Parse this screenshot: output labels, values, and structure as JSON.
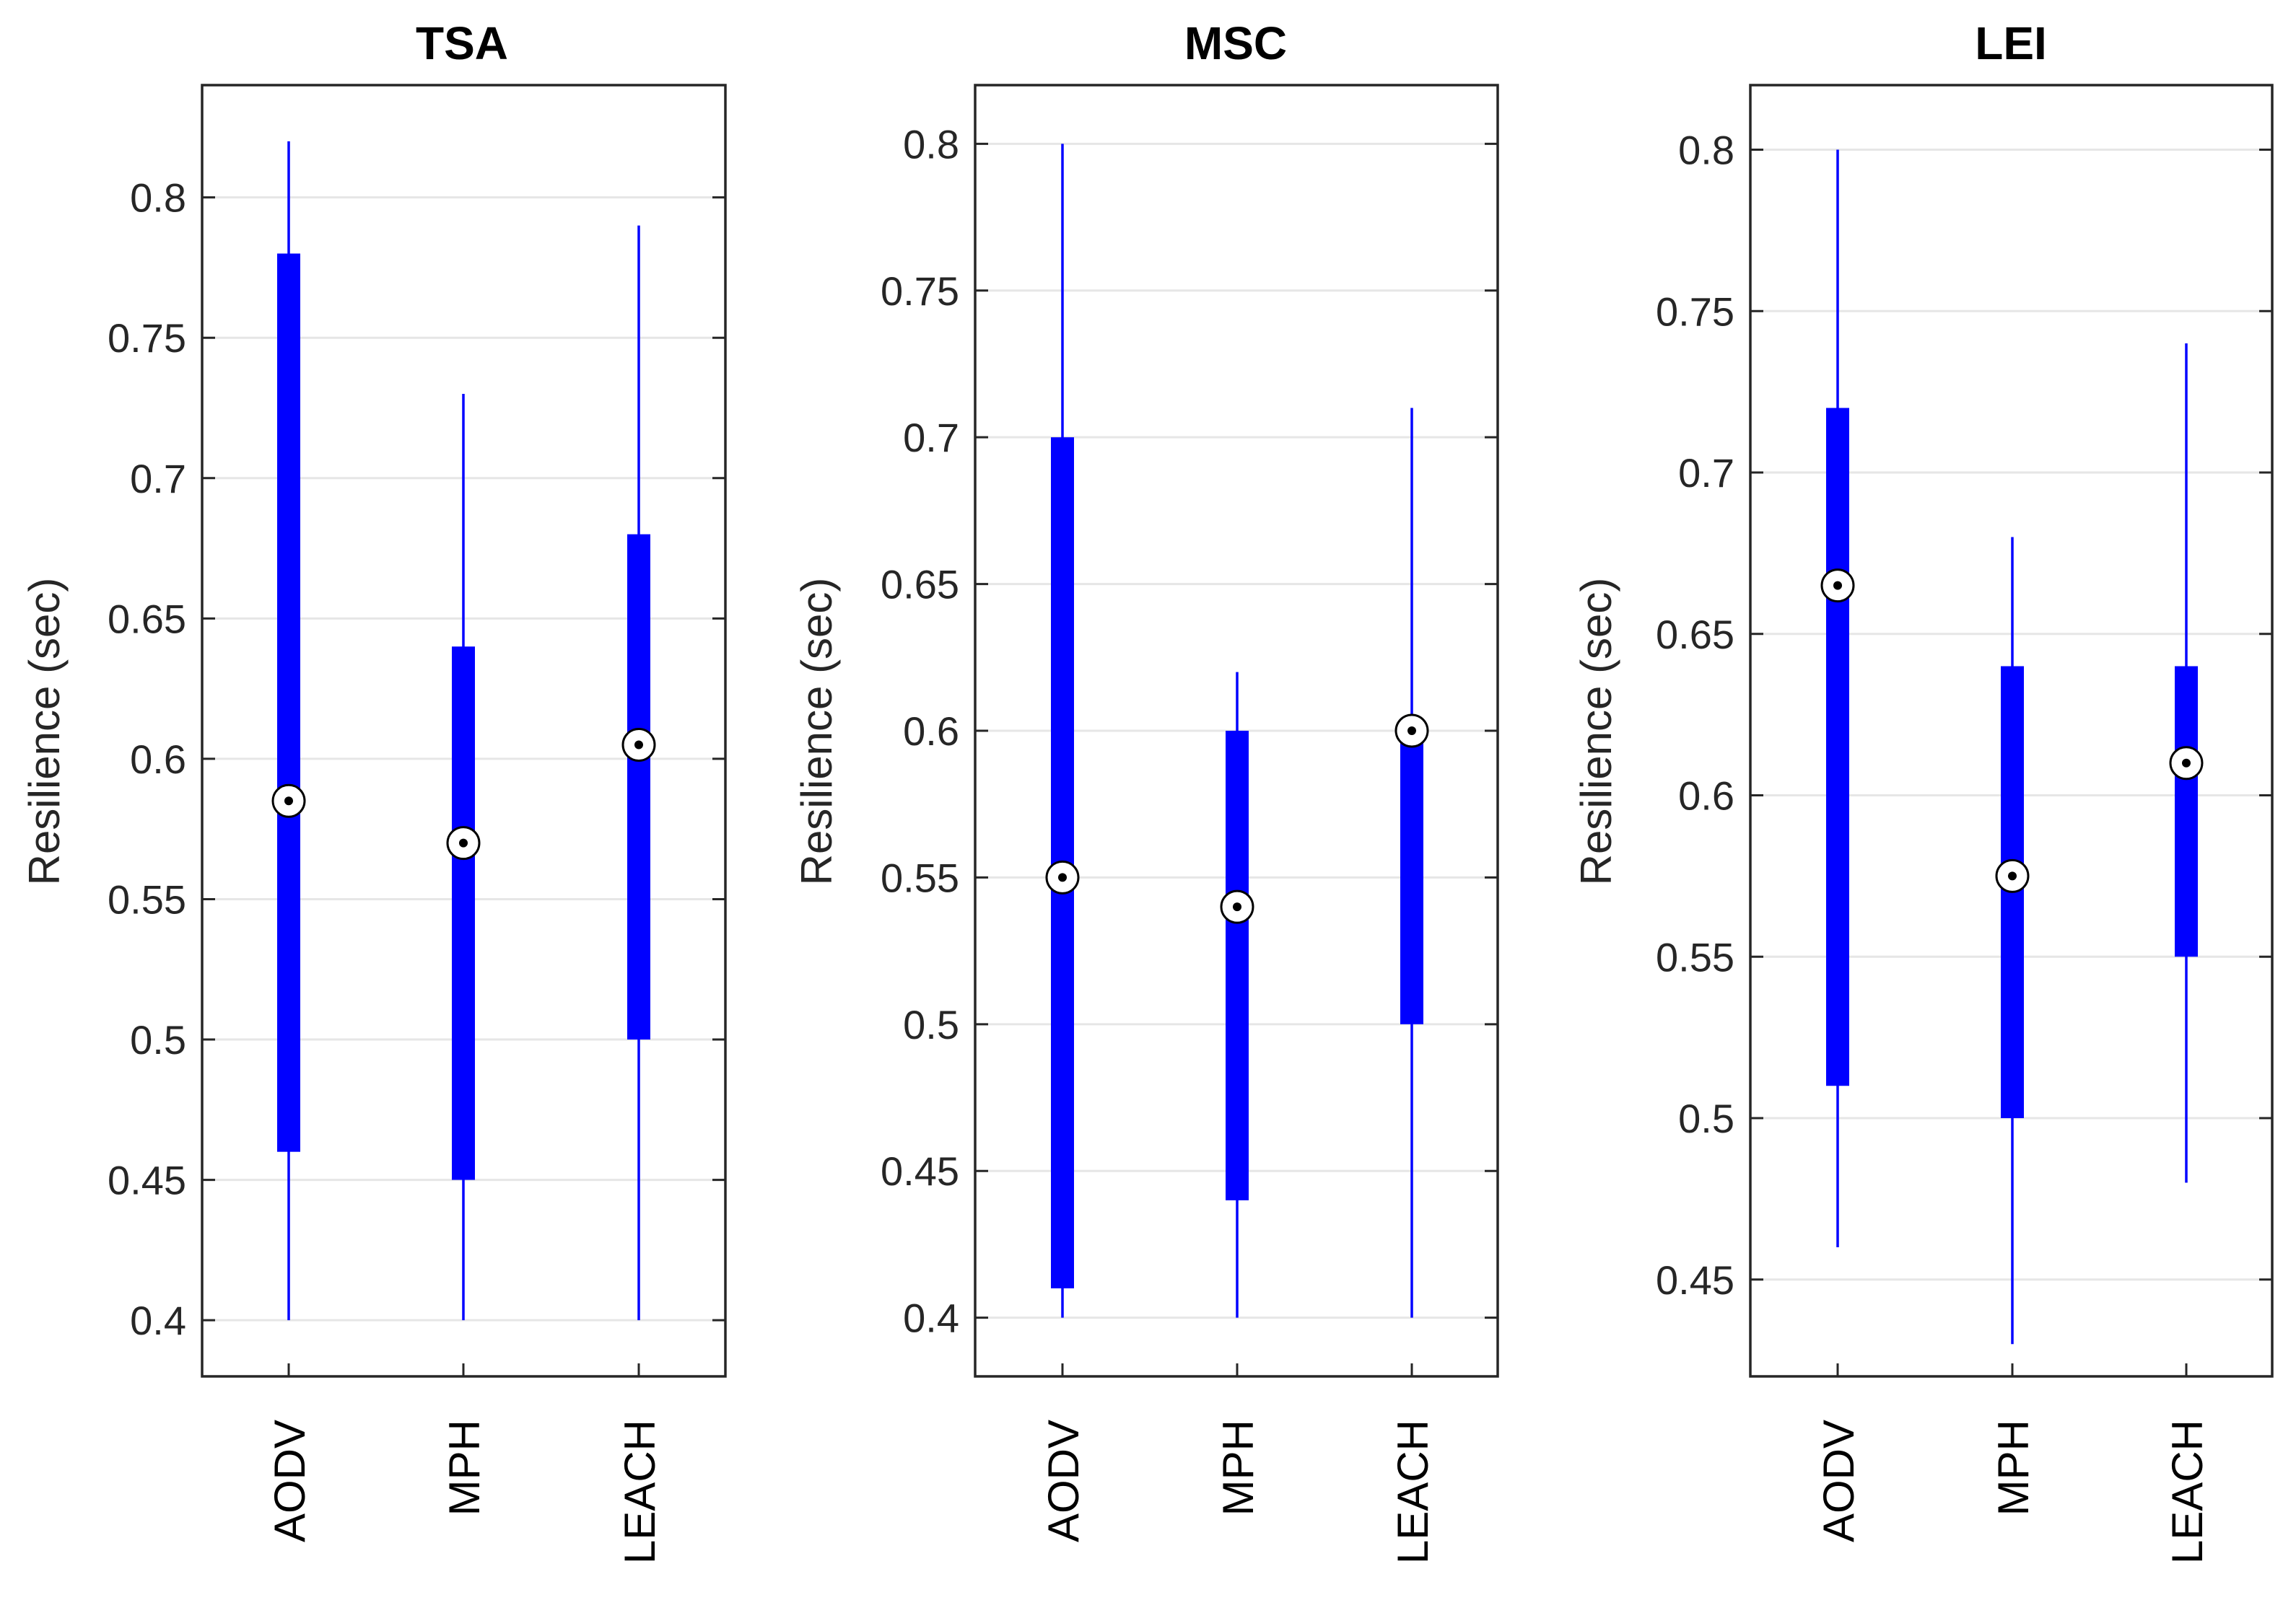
{
  "chart_data": [
    {
      "type": "boxplot",
      "title": "TSA",
      "ylabel": "Resilience (sec)",
      "xlabel": "",
      "categories": [
        "AODV",
        "MPH",
        "LEACH"
      ],
      "ylim": [
        0.38,
        0.84
      ],
      "yticks": [
        0.4,
        0.45,
        0.5,
        0.55,
        0.6,
        0.65,
        0.7,
        0.75,
        0.8
      ],
      "ytick_labels": [
        "0.4",
        "0.45",
        "0.5",
        "0.55",
        "0.6",
        "0.65",
        "0.7",
        "0.75",
        "0.8"
      ],
      "grid": true,
      "boxes": [
        {
          "label": "AODV",
          "whisker_low": 0.4,
          "q1": 0.46,
          "median": 0.585,
          "q3": 0.78,
          "whisker_high": 0.82
        },
        {
          "label": "MPH",
          "whisker_low": 0.4,
          "q1": 0.45,
          "median": 0.57,
          "q3": 0.64,
          "whisker_high": 0.73
        },
        {
          "label": "LEACH",
          "whisker_low": 0.4,
          "q1": 0.5,
          "median": 0.605,
          "q3": 0.68,
          "whisker_high": 0.79
        }
      ]
    },
    {
      "type": "boxplot",
      "title": "MSC",
      "ylabel": "Resilience (sec)",
      "xlabel": "",
      "categories": [
        "AODV",
        "MPH",
        "LEACH"
      ],
      "ylim": [
        0.38,
        0.82
      ],
      "yticks": [
        0.4,
        0.45,
        0.5,
        0.55,
        0.6,
        0.65,
        0.7,
        0.75,
        0.8
      ],
      "ytick_labels": [
        "0.4",
        "0.45",
        "0.5",
        "0.55",
        "0.6",
        "0.65",
        "0.7",
        "0.75",
        "0.8"
      ],
      "grid": true,
      "boxes": [
        {
          "label": "AODV",
          "whisker_low": 0.4,
          "q1": 0.41,
          "median": 0.55,
          "q3": 0.7,
          "whisker_high": 0.8
        },
        {
          "label": "MPH",
          "whisker_low": 0.4,
          "q1": 0.44,
          "median": 0.54,
          "q3": 0.6,
          "whisker_high": 0.62
        },
        {
          "label": "LEACH",
          "whisker_low": 0.4,
          "q1": 0.5,
          "median": 0.6,
          "q3": 0.6,
          "whisker_high": 0.71
        }
      ]
    },
    {
      "type": "boxplot",
      "title": "LEI",
      "ylabel": "Resilience (sec)",
      "xlabel": "",
      "categories": [
        "AODV",
        "MPH",
        "LEACH"
      ],
      "ylim": [
        0.42,
        0.82
      ],
      "yticks": [
        0.45,
        0.5,
        0.55,
        0.6,
        0.65,
        0.7,
        0.75,
        0.8
      ],
      "ytick_labels": [
        "0.45",
        "0.5",
        "0.55",
        "0.6",
        "0.65",
        "0.7",
        "0.75",
        "0.8"
      ],
      "grid": true,
      "boxes": [
        {
          "label": "AODV",
          "whisker_low": 0.46,
          "q1": 0.51,
          "median": 0.665,
          "q3": 0.72,
          "whisker_high": 0.8
        },
        {
          "label": "MPH",
          "whisker_low": 0.43,
          "q1": 0.5,
          "median": 0.575,
          "q3": 0.64,
          "whisker_high": 0.68
        },
        {
          "label": "LEACH",
          "whisker_low": 0.48,
          "q1": 0.55,
          "median": 0.61,
          "q3": 0.64,
          "whisker_high": 0.74
        }
      ]
    }
  ],
  "colors": {
    "box": "#0000ff",
    "axis": "#262626",
    "grid": "#e6e6e6",
    "background": "#ffffff"
  }
}
